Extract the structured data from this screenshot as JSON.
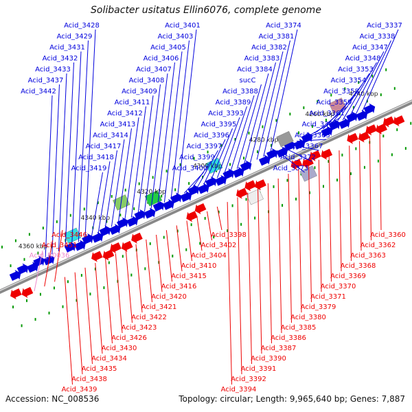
{
  "title": "Solibacter usitatus Ellin6076, complete genome",
  "footer": {
    "accession": "Accession: NC_008536",
    "topology": "Topology: circular; Length: 9,965,640 bp; Genes: 7,887"
  },
  "colors": {
    "forward_strand": "#0000dd",
    "reverse_strand": "#ee0000",
    "rna_gene": "#ee88cc",
    "backbone": "#888888",
    "tick": "#009900"
  },
  "ticks": [
    "4240 kbp",
    "4260 kbp",
    "4280 kbp",
    "4300 kbp",
    "4320 kbp",
    "4340 kbp",
    "4360 kbp"
  ],
  "labels_top": [
    "Acid_3337",
    "Acid_3338",
    "Acid_3347",
    "Acid_3348",
    "Acid_3353",
    "Acid_3354",
    "Acid_3358",
    "Acid_3359",
    "Acid_3361",
    "Acid_3364",
    "Acid_3365",
    "Acid_3367",
    "Acid_3372",
    "Acid_3373",
    "Acid_3374",
    "Acid_3381",
    "Acid_3382",
    "Acid_3383",
    "Acid_3384",
    "sucC",
    "Acid_3388",
    "Acid_3389",
    "Acid_3393",
    "Acid_3395",
    "Acid_3396",
    "Acid_3397",
    "Acid_3399",
    "Acid_3400",
    "Acid_3401",
    "Acid_3403",
    "Acid_3405",
    "Acid_3406",
    "Acid_3407",
    "Acid_3408",
    "Acid_3409",
    "Acid_3411",
    "Acid_3412",
    "Acid_3413",
    "Acid_3414",
    "Acid_3417",
    "Acid_3418",
    "Acid_3419",
    "Acid_3428",
    "Acid_3429",
    "Acid_3431",
    "Acid_3432",
    "Acid_3433",
    "Acid_3437",
    "Acid_3442"
  ],
  "labels_bottom": [
    "Acid_3360",
    "Acid_3362",
    "Acid_3363",
    "Acid_3368",
    "Acid_3369",
    "Acid_3370",
    "Acid_3371",
    "Acid_3379",
    "Acid_3380",
    "Acid_3385",
    "Acid_3386",
    "Acid_3387",
    "Acid_3390",
    "Acid_3391",
    "Acid_3392",
    "Acid_3394",
    "Acid_3398",
    "Acid_3402",
    "Acid_3404",
    "Acid_3410",
    "Acid_3415",
    "Acid_3416",
    "Acid_3420",
    "Acid_3421",
    "Acid_3422",
    "Acid_3423",
    "Acid_3426",
    "Acid_3430",
    "Acid_3434",
    "Acid_3435",
    "Acid_3438",
    "Acid_3439",
    "Acid_3446",
    "Acid_3451",
    "Acid_R0036"
  ]
}
